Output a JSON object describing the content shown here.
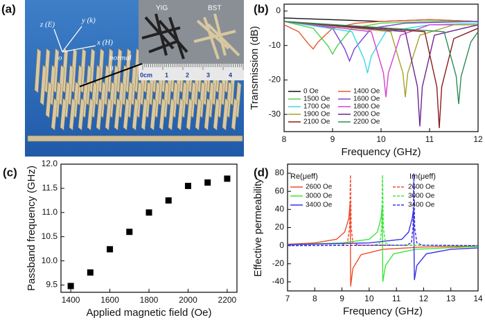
{
  "panel_labels": [
    "(a)",
    "(b)",
    "(c)",
    "(d)"
  ],
  "photo": {
    "axis_labels": [
      "z (E)",
      "y (k)",
      "x (H)",
      "o",
      "normal",
      "θ"
    ],
    "inset_labels": [
      "YIG",
      "BST"
    ],
    "ruler_labels": [
      "0cm",
      "1",
      "2",
      "3",
      "4"
    ]
  },
  "chart_data": [
    {
      "type": "line",
      "xlabel": "Frequency (GHz)",
      "ylabel": "Transmission (dB)",
      "xlim": [
        8,
        12
      ],
      "ylim": [
        -35,
        2
      ],
      "xticks": [
        8,
        9,
        10,
        11,
        12
      ],
      "yticks": [
        -30,
        -20,
        -10,
        0
      ],
      "legend_loc": "lower left",
      "legend_columns": 2,
      "series": [
        {
          "name": "0 Oe",
          "color": "#111111",
          "x": [
            8,
            9,
            10,
            11,
            12
          ],
          "values": [
            -2,
            -2.5,
            -3,
            -2.5,
            -3
          ]
        },
        {
          "name": "1400 Oe",
          "color": "#e8562a",
          "x": [
            8,
            8.3,
            8.5,
            8.6,
            8.7,
            9,
            9.5,
            10,
            11,
            12
          ],
          "values": [
            -4,
            -6,
            -9.5,
            -11,
            -9,
            -5,
            -3.5,
            -3,
            -2.5,
            -3
          ]
        },
        {
          "name": "1500 Oe",
          "color": "#4cd34c",
          "x": [
            8,
            8.6,
            8.9,
            9.0,
            9.1,
            9.4,
            10,
            11,
            12
          ],
          "values": [
            -3,
            -5,
            -10,
            -12.5,
            -10,
            -5,
            -3.5,
            -3,
            -3
          ]
        },
        {
          "name": "1600 Oe",
          "color": "#7c3fd6",
          "x": [
            8,
            9,
            9.25,
            9.35,
            9.45,
            9.8,
            10.5,
            12
          ],
          "values": [
            -3,
            -5,
            -11,
            -14.5,
            -11,
            -5,
            -3.5,
            -3
          ]
        },
        {
          "name": "1700 Oe",
          "color": "#39d6e6",
          "x": [
            8,
            9.4,
            9.65,
            9.72,
            9.8,
            10.1,
            11,
            12
          ],
          "values": [
            -3,
            -6,
            -14,
            -18,
            -13,
            -6,
            -4,
            -3.5
          ]
        },
        {
          "name": "1800 Oe",
          "color": "#d63fd6",
          "x": [
            8,
            9.8,
            10.05,
            10.1,
            10.15,
            10.4,
            11,
            12
          ],
          "values": [
            -3,
            -6,
            -18,
            -25,
            -18,
            -7,
            -4,
            -4
          ]
        },
        {
          "name": "1900 Oe",
          "color": "#a3a329",
          "x": [
            8,
            10.2,
            10.45,
            10.5,
            10.55,
            10.8,
            11.5,
            12
          ],
          "values": [
            -3,
            -6,
            -18,
            -25,
            -18,
            -7,
            -4,
            -4
          ]
        },
        {
          "name": "2000 Oe",
          "color": "#6a2490",
          "x": [
            8,
            10.5,
            10.75,
            10.8,
            10.85,
            11.1,
            12
          ],
          "values": [
            -3,
            -6,
            -22,
            -33.5,
            -22,
            -7,
            -4
          ]
        },
        {
          "name": "2100 Oe",
          "color": "#8b1a1a",
          "x": [
            8,
            10.9,
            11.15,
            11.2,
            11.25,
            11.5,
            12
          ],
          "values": [
            -3,
            -6,
            -22,
            -34,
            -22,
            -8,
            -5
          ]
        },
        {
          "name": "2200 Oe",
          "color": "#2e8b57",
          "x": [
            8,
            11.3,
            11.55,
            11.6,
            11.65,
            11.85,
            12
          ],
          "values": [
            -3,
            -6,
            -19,
            -27,
            -19,
            -9,
            -6
          ]
        }
      ]
    },
    {
      "type": "scatter",
      "xlabel": "Applied magnetic field (Oe)",
      "ylabel": "Passband frequency (GHz)",
      "xlim": [
        1350,
        2250
      ],
      "ylim": [
        9.35,
        12.0
      ],
      "xticks": [
        1400,
        1600,
        1800,
        2000,
        2200
      ],
      "yticks": [
        9.5,
        {
          "value": 10,
          "label": "10.0"
        },
        10.5,
        {
          "value": 11,
          "label": "11.0"
        },
        11.5,
        {
          "value": 12,
          "label": "12.0"
        }
      ],
      "color": "#000000",
      "x": [
        1400,
        1500,
        1600,
        1700,
        1800,
        1900,
        2000,
        2100,
        2200
      ],
      "values": [
        9.48,
        9.76,
        10.24,
        10.6,
        11.0,
        11.25,
        11.55,
        11.62,
        11.7
      ]
    },
    {
      "type": "line",
      "xlabel": "Frequency (GHz)",
      "ylabel": "Effective permeability",
      "xlim": [
        7,
        14
      ],
      "ylim": [
        -50,
        90
      ],
      "xticks": [
        7,
        8,
        9,
        10,
        11,
        12,
        13,
        14
      ],
      "yticks": [
        -40,
        -20,
        0,
        20,
        40,
        60,
        80
      ],
      "legend_loc": "upper",
      "series_groups": [
        {
          "name": "Re(μeff)",
          "dash": false,
          "series": [
            {
              "name": "2600 Oe",
              "color": "#f04a2a",
              "x": [
                7,
                8,
                8.8,
                9.1,
                9.25,
                9.3,
                9.32,
                9.4,
                9.7,
                10.5,
                12,
                14
              ],
              "values": [
                1.5,
                3,
                7,
                15,
                30,
                48,
                -45,
                -25,
                -10,
                -4,
                -1.5,
                -0.5
              ]
            },
            {
              "name": "3000 Oe",
              "color": "#3be63b",
              "x": [
                7,
                9,
                10,
                10.3,
                10.43,
                10.48,
                10.5,
                10.6,
                10.9,
                11.7,
                14
              ],
              "values": [
                1,
                3,
                7,
                15,
                30,
                44,
                -40,
                -22,
                -9,
                -4,
                -1
              ]
            },
            {
              "name": "3400 Oe",
              "color": "#3a2ee6",
              "x": [
                7,
                10,
                11.2,
                11.45,
                11.58,
                11.63,
                11.66,
                11.75,
                12.1,
                13,
                14
              ],
              "values": [
                1,
                3,
                7,
                15,
                30,
                40,
                -38,
                -22,
                -9,
                -4,
                -2.5
              ]
            }
          ]
        },
        {
          "name": "Im(μeff)",
          "dash": true,
          "series": [
            {
              "name": "2600 Oe",
              "color": "#f04a2a",
              "x": [
                7,
                9,
                9.2,
                9.28,
                9.31,
                9.34,
                9.4,
                9.6,
                14
              ],
              "values": [
                0,
                0.5,
                3,
                20,
                78,
                20,
                3,
                0.5,
                0
              ]
            },
            {
              "name": "3000 Oe",
              "color": "#3be63b",
              "x": [
                7,
                10.2,
                10.4,
                10.46,
                10.49,
                10.52,
                10.6,
                10.8,
                14
              ],
              "values": [
                0,
                0.5,
                3,
                20,
                78,
                20,
                3,
                0.5,
                0
              ]
            },
            {
              "name": "3400 Oe",
              "color": "#3a2ee6",
              "x": [
                7,
                11.35,
                11.55,
                11.61,
                11.64,
                11.67,
                11.75,
                11.95,
                14
              ],
              "values": [
                0,
                0.5,
                3,
                20,
                80,
                20,
                3,
                0.5,
                0
              ]
            }
          ]
        }
      ]
    }
  ]
}
